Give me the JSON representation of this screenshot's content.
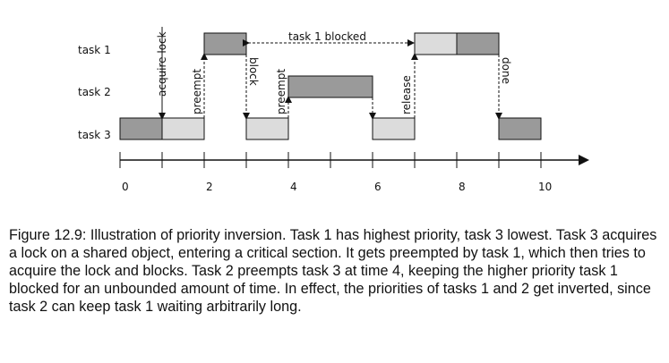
{
  "tasks": [
    "task 1",
    "task 2",
    "task 3"
  ],
  "segments": [
    {
      "task": "task 3",
      "start": 0,
      "end": 1,
      "fill": "#9a9a9a"
    },
    {
      "task": "task 3",
      "start": 1,
      "end": 2,
      "fill": "#dcdcdc"
    },
    {
      "task": "task 1",
      "start": 2,
      "end": 3,
      "fill": "#9a9a9a"
    },
    {
      "task": "task 3",
      "start": 3,
      "end": 4,
      "fill": "#dcdcdc"
    },
    {
      "task": "task 2",
      "start": 4,
      "end": 6,
      "fill": "#9a9a9a"
    },
    {
      "task": "task 3",
      "start": 6,
      "end": 7,
      "fill": "#dcdcdc"
    },
    {
      "task": "task 1",
      "start": 7,
      "end": 8,
      "fill": "#dcdcdc"
    },
    {
      "task": "task 1",
      "start": 8,
      "end": 9,
      "fill": "#9a9a9a"
    },
    {
      "task": "task 3",
      "start": 9,
      "end": 10,
      "fill": "#9a9a9a"
    }
  ],
  "events": [
    {
      "label": "acquire lock",
      "time": 1,
      "kind": "arrow"
    },
    {
      "label": "preempt",
      "time": 2,
      "kind": "dashed"
    },
    {
      "label": "block",
      "time": 3,
      "kind": "dashed"
    },
    {
      "label": "preempt",
      "time": 4,
      "kind": "dashed"
    },
    {
      "label": "release",
      "time": 6,
      "kind": "dashed"
    },
    {
      "label": "done",
      "time": 9,
      "kind": "dashed"
    }
  ],
  "blocked_span": {
    "label": "task 1 blocked",
    "start": 3,
    "end": 7
  },
  "axis": {
    "ticks": [
      "0",
      "2",
      "4",
      "6",
      "8",
      "10"
    ]
  },
  "caption": "Figure 12.9: Illustration of priority inversion.  Task 1 has highest priority, task 3 lowest. Task 3 acquires a lock on a shared object, entering a critical section. It gets preempted by task 1, which then tries to acquire the lock and blocks. Task 2 preempts task 3 at time 4, keeping the higher priority task 1 blocked for an unbounded amount of time. In effect, the priorities of tasks 1 and 2 get inverted, since task 2 can keep task 1 waiting arbitrarily long."
}
